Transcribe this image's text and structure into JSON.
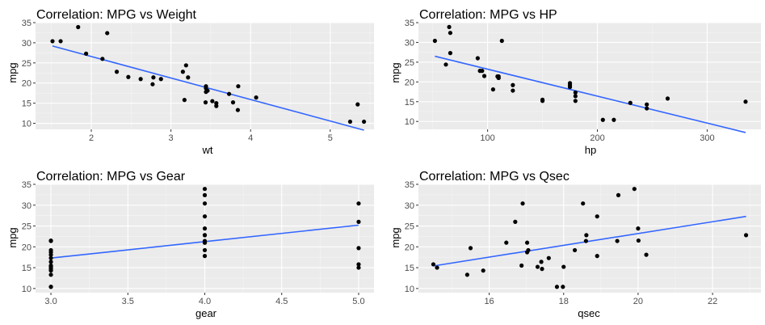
{
  "colors": {
    "panel_bg": "#ebebeb",
    "grid_major": "#ffffff",
    "grid_minor": "#f5f5f5",
    "point": "#000000",
    "smooth_line": "#3366ff",
    "tick_text": "#4d4d4d"
  },
  "chart_data": [
    {
      "type": "scatter",
      "title": "Correlation: MPG vs Weight",
      "xlabel": "wt",
      "ylabel": "mpg",
      "xlim": [
        1.3,
        5.55
      ],
      "ylim": [
        8.5,
        35
      ],
      "xticks": [
        2,
        3,
        4,
        5
      ],
      "xtick_labels": [
        "2",
        "3",
        "4",
        "5"
      ],
      "yticks": [
        10,
        15,
        20,
        25,
        30,
        35
      ],
      "ytick_labels": [
        "10",
        "15",
        "20",
        "25",
        "30",
        "35"
      ],
      "grid": true,
      "smooth": {
        "type": "linear",
        "x": [
          1.513,
          5.424
        ],
        "y": [
          29.2,
          8.3
        ]
      },
      "points": [
        {
          "x": 2.62,
          "y": 21.0
        },
        {
          "x": 2.875,
          "y": 21.0
        },
        {
          "x": 2.32,
          "y": 22.8
        },
        {
          "x": 3.215,
          "y": 21.4
        },
        {
          "x": 3.44,
          "y": 18.7
        },
        {
          "x": 3.46,
          "y": 18.1
        },
        {
          "x": 3.57,
          "y": 14.3
        },
        {
          "x": 3.19,
          "y": 24.4
        },
        {
          "x": 3.15,
          "y": 22.8
        },
        {
          "x": 3.44,
          "y": 19.2
        },
        {
          "x": 3.44,
          "y": 17.8
        },
        {
          "x": 4.07,
          "y": 16.4
        },
        {
          "x": 3.73,
          "y": 17.3
        },
        {
          "x": 3.78,
          "y": 15.2
        },
        {
          "x": 5.25,
          "y": 10.4
        },
        {
          "x": 5.424,
          "y": 10.4
        },
        {
          "x": 5.345,
          "y": 14.7
        },
        {
          "x": 2.2,
          "y": 32.4
        },
        {
          "x": 1.615,
          "y": 30.4
        },
        {
          "x": 1.835,
          "y": 33.9
        },
        {
          "x": 2.465,
          "y": 21.5
        },
        {
          "x": 3.52,
          "y": 15.5
        },
        {
          "x": 3.435,
          "y": 15.2
        },
        {
          "x": 3.84,
          "y": 13.3
        },
        {
          "x": 3.845,
          "y": 19.2
        },
        {
          "x": 1.935,
          "y": 27.3
        },
        {
          "x": 2.14,
          "y": 26.0
        },
        {
          "x": 1.513,
          "y": 30.4
        },
        {
          "x": 3.17,
          "y": 15.8
        },
        {
          "x": 2.77,
          "y": 19.7
        },
        {
          "x": 3.57,
          "y": 15.0
        },
        {
          "x": 2.78,
          "y": 21.4
        }
      ]
    },
    {
      "type": "scatter",
      "title": "Correlation: MPG vs HP",
      "xlabel": "hp",
      "ylabel": "mpg",
      "xlim": [
        37,
        349
      ],
      "ylim": [
        8,
        35
      ],
      "xticks": [
        100,
        200,
        300
      ],
      "xtick_labels": [
        "100",
        "200",
        "300"
      ],
      "yticks": [
        10,
        15,
        20,
        25,
        30,
        35
      ],
      "ytick_labels": [
        "10",
        "15",
        "20",
        "25",
        "30",
        "35"
      ],
      "grid": true,
      "smooth": {
        "type": "linear",
        "x": [
          52,
          335
        ],
        "y": [
          26.5,
          7.2
        ]
      },
      "points": [
        {
          "x": 110,
          "y": 21.0
        },
        {
          "x": 110,
          "y": 21.0
        },
        {
          "x": 93,
          "y": 22.8
        },
        {
          "x": 110,
          "y": 21.4
        },
        {
          "x": 175,
          "y": 18.7
        },
        {
          "x": 105,
          "y": 18.1
        },
        {
          "x": 245,
          "y": 14.3
        },
        {
          "x": 62,
          "y": 24.4
        },
        {
          "x": 95,
          "y": 22.8
        },
        {
          "x": 123,
          "y": 19.2
        },
        {
          "x": 123,
          "y": 17.8
        },
        {
          "x": 180,
          "y": 16.4
        },
        {
          "x": 180,
          "y": 17.3
        },
        {
          "x": 180,
          "y": 15.2
        },
        {
          "x": 205,
          "y": 10.4
        },
        {
          "x": 215,
          "y": 10.4
        },
        {
          "x": 230,
          "y": 14.7
        },
        {
          "x": 66,
          "y": 32.4
        },
        {
          "x": 52,
          "y": 30.4
        },
        {
          "x": 65,
          "y": 33.9
        },
        {
          "x": 97,
          "y": 21.5
        },
        {
          "x": 150,
          "y": 15.5
        },
        {
          "x": 150,
          "y": 15.2
        },
        {
          "x": 245,
          "y": 13.3
        },
        {
          "x": 175,
          "y": 19.2
        },
        {
          "x": 66,
          "y": 27.3
        },
        {
          "x": 91,
          "y": 26.0
        },
        {
          "x": 113,
          "y": 30.4
        },
        {
          "x": 264,
          "y": 15.8
        },
        {
          "x": 175,
          "y": 19.7
        },
        {
          "x": 335,
          "y": 15.0
        },
        {
          "x": 109,
          "y": 21.4
        }
      ]
    },
    {
      "type": "scatter",
      "title": "Correlation: MPG vs Gear",
      "xlabel": "gear",
      "ylabel": "mpg",
      "xlim": [
        2.9,
        5.1
      ],
      "ylim": [
        9,
        35
      ],
      "xticks": [
        3.0,
        3.5,
        4.0,
        4.5,
        5.0
      ],
      "xtick_labels": [
        "3.0",
        "3.5",
        "4.0",
        "4.5",
        "5.0"
      ],
      "yticks": [
        10,
        15,
        20,
        25,
        30,
        35
      ],
      "ytick_labels": [
        "10",
        "15",
        "20",
        "25",
        "30",
        "35"
      ],
      "grid": true,
      "smooth": {
        "type": "linear",
        "x": [
          3.0,
          5.0
        ],
        "y": [
          17.3,
          25.2
        ]
      },
      "points": [
        {
          "x": 4,
          "y": 21.0
        },
        {
          "x": 4,
          "y": 21.0
        },
        {
          "x": 4,
          "y": 22.8
        },
        {
          "x": 3,
          "y": 21.4
        },
        {
          "x": 3,
          "y": 18.7
        },
        {
          "x": 3,
          "y": 18.1
        },
        {
          "x": 3,
          "y": 14.3
        },
        {
          "x": 4,
          "y": 24.4
        },
        {
          "x": 4,
          "y": 22.8
        },
        {
          "x": 4,
          "y": 19.2
        },
        {
          "x": 4,
          "y": 17.8
        },
        {
          "x": 3,
          "y": 16.4
        },
        {
          "x": 3,
          "y": 17.3
        },
        {
          "x": 3,
          "y": 15.2
        },
        {
          "x": 3,
          "y": 10.4
        },
        {
          "x": 3,
          "y": 10.4
        },
        {
          "x": 3,
          "y": 14.7
        },
        {
          "x": 4,
          "y": 32.4
        },
        {
          "x": 4,
          "y": 30.4
        },
        {
          "x": 4,
          "y": 33.9
        },
        {
          "x": 3,
          "y": 21.5
        },
        {
          "x": 3,
          "y": 15.5
        },
        {
          "x": 3,
          "y": 15.2
        },
        {
          "x": 3,
          "y": 13.3
        },
        {
          "x": 3,
          "y": 19.2
        },
        {
          "x": 4,
          "y": 27.3
        },
        {
          "x": 5,
          "y": 26.0
        },
        {
          "x": 5,
          "y": 30.4
        },
        {
          "x": 5,
          "y": 15.8
        },
        {
          "x": 5,
          "y": 19.7
        },
        {
          "x": 5,
          "y": 15.0
        },
        {
          "x": 4,
          "y": 21.4
        }
      ]
    },
    {
      "type": "scatter",
      "title": "Correlation: MPG vs Qsec",
      "xlabel": "qsec",
      "ylabel": "mpg",
      "xlim": [
        14.1,
        23.3
      ],
      "ylim": [
        9,
        35
      ],
      "xticks": [
        16,
        18,
        20,
        22
      ],
      "xtick_labels": [
        "16",
        "18",
        "20",
        "22"
      ],
      "yticks": [
        10,
        15,
        20,
        25,
        30,
        35
      ],
      "ytick_labels": [
        "10",
        "15",
        "20",
        "25",
        "30",
        "35"
      ],
      "grid": true,
      "smooth": {
        "type": "linear",
        "x": [
          14.5,
          22.9
        ],
        "y": [
          15.4,
          27.3
        ]
      },
      "points": [
        {
          "x": 16.46,
          "y": 21.0
        },
        {
          "x": 17.02,
          "y": 21.0
        },
        {
          "x": 18.61,
          "y": 22.8
        },
        {
          "x": 19.44,
          "y": 21.4
        },
        {
          "x": 17.02,
          "y": 18.7
        },
        {
          "x": 20.22,
          "y": 18.1
        },
        {
          "x": 15.84,
          "y": 14.3
        },
        {
          "x": 20.0,
          "y": 24.4
        },
        {
          "x": 22.9,
          "y": 22.8
        },
        {
          "x": 18.3,
          "y": 19.2
        },
        {
          "x": 18.9,
          "y": 17.8
        },
        {
          "x": 17.4,
          "y": 16.4
        },
        {
          "x": 17.6,
          "y": 17.3
        },
        {
          "x": 18.0,
          "y": 15.2
        },
        {
          "x": 17.98,
          "y": 10.4
        },
        {
          "x": 17.82,
          "y": 10.4
        },
        {
          "x": 17.42,
          "y": 14.7
        },
        {
          "x": 19.47,
          "y": 32.4
        },
        {
          "x": 18.52,
          "y": 30.4
        },
        {
          "x": 19.9,
          "y": 33.9
        },
        {
          "x": 20.01,
          "y": 21.5
        },
        {
          "x": 16.87,
          "y": 15.5
        },
        {
          "x": 17.3,
          "y": 15.2
        },
        {
          "x": 15.41,
          "y": 13.3
        },
        {
          "x": 17.05,
          "y": 19.2
        },
        {
          "x": 18.9,
          "y": 27.3
        },
        {
          "x": 16.7,
          "y": 26.0
        },
        {
          "x": 16.9,
          "y": 30.4
        },
        {
          "x": 14.5,
          "y": 15.8
        },
        {
          "x": 15.5,
          "y": 19.7
        },
        {
          "x": 14.6,
          "y": 15.0
        },
        {
          "x": 18.6,
          "y": 21.4
        }
      ]
    }
  ]
}
